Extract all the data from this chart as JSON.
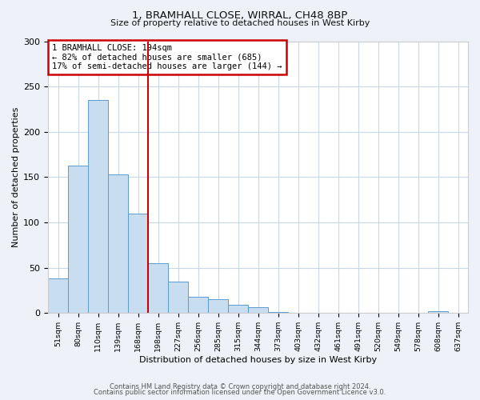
{
  "title1": "1, BRAMHALL CLOSE, WIRRAL, CH48 8BP",
  "title2": "Size of property relative to detached houses in West Kirby",
  "xlabel": "Distribution of detached houses by size in West Kirby",
  "ylabel": "Number of detached properties",
  "bar_labels": [
    "51sqm",
    "80sqm",
    "110sqm",
    "139sqm",
    "168sqm",
    "198sqm",
    "227sqm",
    "256sqm",
    "285sqm",
    "315sqm",
    "344sqm",
    "373sqm",
    "403sqm",
    "432sqm",
    "461sqm",
    "491sqm",
    "520sqm",
    "549sqm",
    "578sqm",
    "608sqm",
    "637sqm"
  ],
  "bar_values": [
    38,
    163,
    235,
    153,
    110,
    55,
    35,
    18,
    15,
    9,
    6,
    1,
    0,
    0,
    0,
    0,
    0,
    0,
    0,
    2,
    0
  ],
  "bar_color": "#c9ddf0",
  "bar_edge_color": "#5b9bd5",
  "vline_color": "#cc0000",
  "annotation_title": "1 BRAMHALL CLOSE: 194sqm",
  "annotation_line1": "← 82% of detached houses are smaller (685)",
  "annotation_line2": "17% of semi-detached houses are larger (144) →",
  "annotation_box_color": "#cc0000",
  "ylim": [
    0,
    300
  ],
  "yticks": [
    0,
    50,
    100,
    150,
    200,
    250,
    300
  ],
  "footer1": "Contains HM Land Registry data © Crown copyright and database right 2024.",
  "footer2": "Contains public sector information licensed under the Open Government Licence v3.0.",
  "bg_color": "#eef2f8",
  "plot_bg_color": "#ffffff",
  "grid_color": "#c8d8ea"
}
